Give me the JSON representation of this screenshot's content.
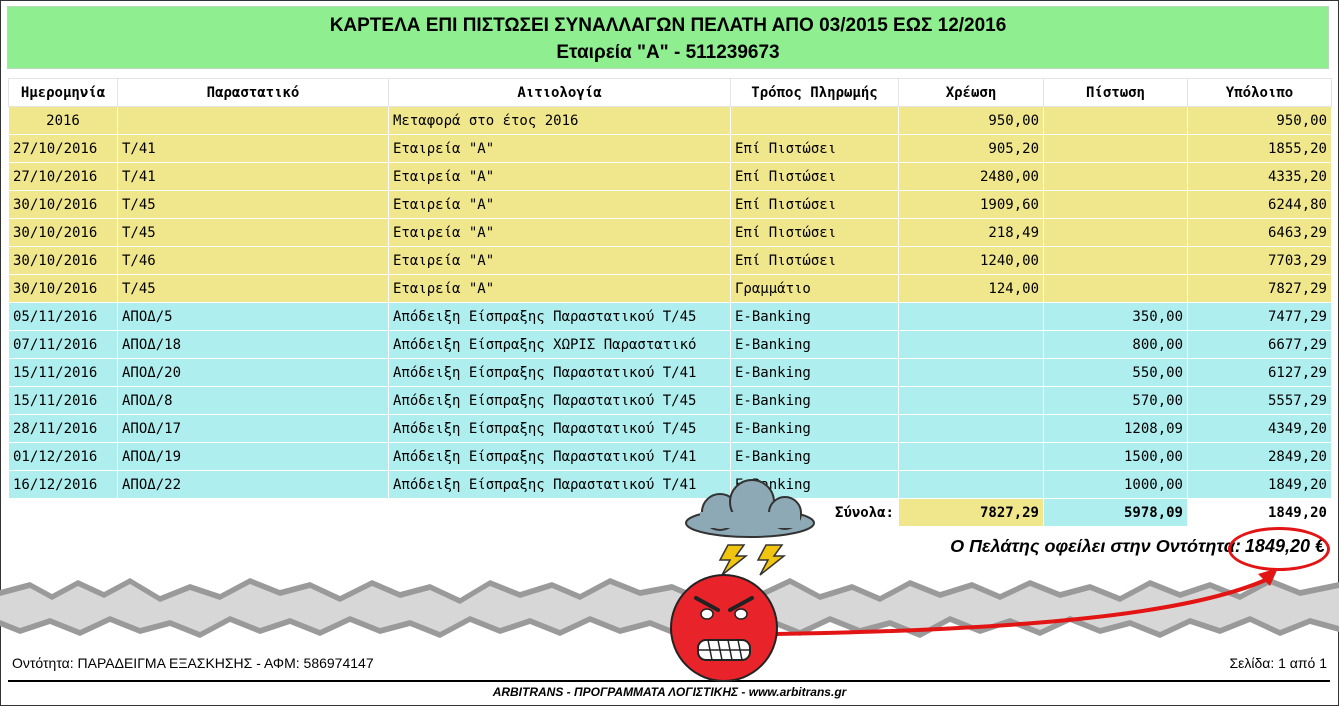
{
  "header": {
    "title": "ΚΑΡΤΕΛΑ ΕΠΙ ΠΙΣΤΩΣΕΙ ΣΥΝΑΛΛΑΓΩΝ ΠΕΛΑΤΗ ΑΠΟ 03/2015 ΕΩΣ 12/2016",
    "subtitle": "Εταιρεία \"Α\" - 511239673"
  },
  "columns": [
    "Ημερομηνία",
    "Παραστατικό",
    "Αιτιολογία",
    "Τρόπος Πληρωμής",
    "Χρέωση",
    "Πίστωση",
    "Υπόλοιπο"
  ],
  "rows": [
    {
      "date": "2016",
      "doc": "",
      "reason": "Μεταφορά στο έτος 2016",
      "method": "",
      "debit": "950,00",
      "credit": "",
      "balance": "950,00",
      "kind": "y"
    },
    {
      "date": "27/10/2016",
      "doc": "Τ/41",
      "reason": "Εταιρεία \"Α\"",
      "method": "Επί Πιστώσει",
      "debit": "905,20",
      "credit": "",
      "balance": "1855,20",
      "kind": "y"
    },
    {
      "date": "27/10/2016",
      "doc": "Τ/41",
      "reason": "Εταιρεία \"Α\"",
      "method": "Επί Πιστώσει",
      "debit": "2480,00",
      "credit": "",
      "balance": "4335,20",
      "kind": "y"
    },
    {
      "date": "30/10/2016",
      "doc": "Τ/45",
      "reason": "Εταιρεία \"Α\"",
      "method": "Επί Πιστώσει",
      "debit": "1909,60",
      "credit": "",
      "balance": "6244,80",
      "kind": "y"
    },
    {
      "date": "30/10/2016",
      "doc": "Τ/45",
      "reason": "Εταιρεία \"Α\"",
      "method": "Επί Πιστώσει",
      "debit": "218,49",
      "credit": "",
      "balance": "6463,29",
      "kind": "y"
    },
    {
      "date": "30/10/2016",
      "doc": "Τ/46",
      "reason": "Εταιρεία \"Α\"",
      "method": "Επί Πιστώσει",
      "debit": "1240,00",
      "credit": "",
      "balance": "7703,29",
      "kind": "y"
    },
    {
      "date": "30/10/2016",
      "doc": "Τ/45",
      "reason": "Εταιρεία \"Α\"",
      "method": "Γραμμάτιο",
      "debit": "124,00",
      "credit": "",
      "balance": "7827,29",
      "kind": "y"
    },
    {
      "date": "05/11/2016",
      "doc": "ΑΠΟΔ/5",
      "reason": "Απόδειξη Είσπραξης Παραστατικού Τ/45",
      "method": "E-Banking",
      "debit": "",
      "credit": "350,00",
      "balance": "7477,29",
      "kind": "c"
    },
    {
      "date": "07/11/2016",
      "doc": "ΑΠΟΔ/18",
      "reason": "Απόδειξη Είσπραξης ΧΩΡΙΣ Παραστατικό",
      "method": "E-Banking",
      "debit": "",
      "credit": "800,00",
      "balance": "6677,29",
      "kind": "c"
    },
    {
      "date": "15/11/2016",
      "doc": "ΑΠΟΔ/20",
      "reason": "Απόδειξη Είσπραξης Παραστατικού Τ/41",
      "method": "E-Banking",
      "debit": "",
      "credit": "550,00",
      "balance": "6127,29",
      "kind": "c"
    },
    {
      "date": "15/11/2016",
      "doc": "ΑΠΟΔ/8",
      "reason": "Απόδειξη Είσπραξης Παραστατικού Τ/45",
      "method": "E-Banking",
      "debit": "",
      "credit": "570,00",
      "balance": "5557,29",
      "kind": "c"
    },
    {
      "date": "28/11/2016",
      "doc": "ΑΠΟΔ/17",
      "reason": "Απόδειξη Είσπραξης Παραστατικού Τ/45",
      "method": "E-Banking",
      "debit": "",
      "credit": "1208,09",
      "balance": "4349,20",
      "kind": "c"
    },
    {
      "date": "01/12/2016",
      "doc": "ΑΠΟΔ/19",
      "reason": "Απόδειξη Είσπραξης Παραστατικού Τ/41",
      "method": "E-Banking",
      "debit": "",
      "credit": "1500,00",
      "balance": "2849,20",
      "kind": "c"
    },
    {
      "date": "16/12/2016",
      "doc": "ΑΠΟΔ/22",
      "reason": "Απόδειξη Είσπραξης Παραστατικού Τ/41",
      "method": "E-Banking",
      "debit": "",
      "credit": "1000,00",
      "balance": "1849,20",
      "kind": "c"
    }
  ],
  "totals": {
    "label": "Σύνολα:",
    "debit": "7827,29",
    "credit": "5978,09",
    "balance": "1849,20"
  },
  "owed": {
    "text": "Ο Πελάτης οφείλει στην Οντότητα:",
    "amount": "1849,20 €"
  },
  "footer": {
    "entity": "Οντότητα: ΠΑΡΑΔΕΙΓΜΑ ΕΞΑΣΚΗΣΗΣ - ΑΦΜ: 586974147",
    "page": "Σελίδα: 1 από 1",
    "brand": "ARBITRANS - ΠΡΟΓΡΑΜΜΑΤΑ ΛΟΓΙΣΤΙΚΗΣ - www.arbitrans.gr"
  },
  "colors": {
    "header_bg": "#8fee90",
    "debit_rows": "#f0e68c",
    "credit_rows": "#afeeee",
    "highlight_red": "#e31414"
  },
  "icons": [
    "storm-cloud-icon",
    "lightning-bolt-icon",
    "angry-face-icon",
    "red-arrow-icon"
  ]
}
